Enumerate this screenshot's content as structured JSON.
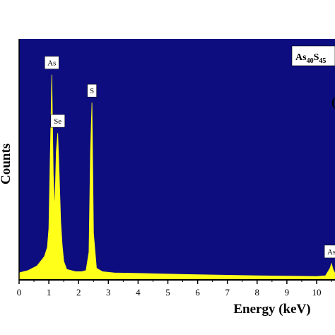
{
  "chart_data": {
    "type": "area",
    "title": "",
    "xlabel": "Energy (keV)",
    "ylabel": "Counts",
    "xlim": [
      0,
      10.8
    ],
    "ylim": [
      0,
      1.0
    ],
    "x_ticks": [
      "0",
      "1",
      "2",
      "3",
      "4",
      "5",
      "6",
      "7",
      "8",
      "9",
      "10"
    ],
    "composition_label": {
      "main1": "As",
      "sub1": "40",
      "main2": "S",
      "sub2": "45"
    },
    "partial_edge_text": "(",
    "series": [
      {
        "x": [
          0,
          0.3,
          0.6,
          0.85,
          0.95,
          1.0,
          1.05,
          1.1,
          1.15,
          1.2,
          1.25,
          1.3,
          1.35,
          1.4,
          1.45,
          1.5,
          1.6,
          1.75,
          1.9,
          2.1,
          2.25,
          2.35,
          2.4,
          2.45,
          2.5,
          2.6,
          2.8,
          3.2,
          4,
          5,
          6,
          7,
          8,
          9,
          10,
          10.3,
          10.45,
          10.5,
          10.55,
          10.65,
          10.8
        ],
        "y": [
          0.03,
          0.04,
          0.06,
          0.1,
          0.14,
          0.22,
          0.55,
          0.88,
          0.45,
          0.3,
          0.55,
          0.63,
          0.45,
          0.25,
          0.15,
          0.08,
          0.045,
          0.04,
          0.035,
          0.035,
          0.04,
          0.12,
          0.55,
          0.76,
          0.2,
          0.05,
          0.035,
          0.03,
          0.028,
          0.025,
          0.022,
          0.02,
          0.018,
          0.016,
          0.015,
          0.018,
          0.05,
          0.07,
          0.045,
          0.02,
          0.015
        ]
      }
    ],
    "peak_labels": [
      {
        "text": "As",
        "x": 1.1,
        "y": 0.88
      },
      {
        "text": "Se",
        "x": 1.3,
        "y": 0.63
      },
      {
        "text": "S",
        "x": 2.45,
        "y": 0.76
      },
      {
        "text": "As",
        "x": 10.5,
        "y": 0.07
      }
    ],
    "colors": {
      "background": "#0d0d80",
      "fill": "#ffff1a",
      "axis": "#000000"
    },
    "grid": false,
    "legend": "none"
  }
}
